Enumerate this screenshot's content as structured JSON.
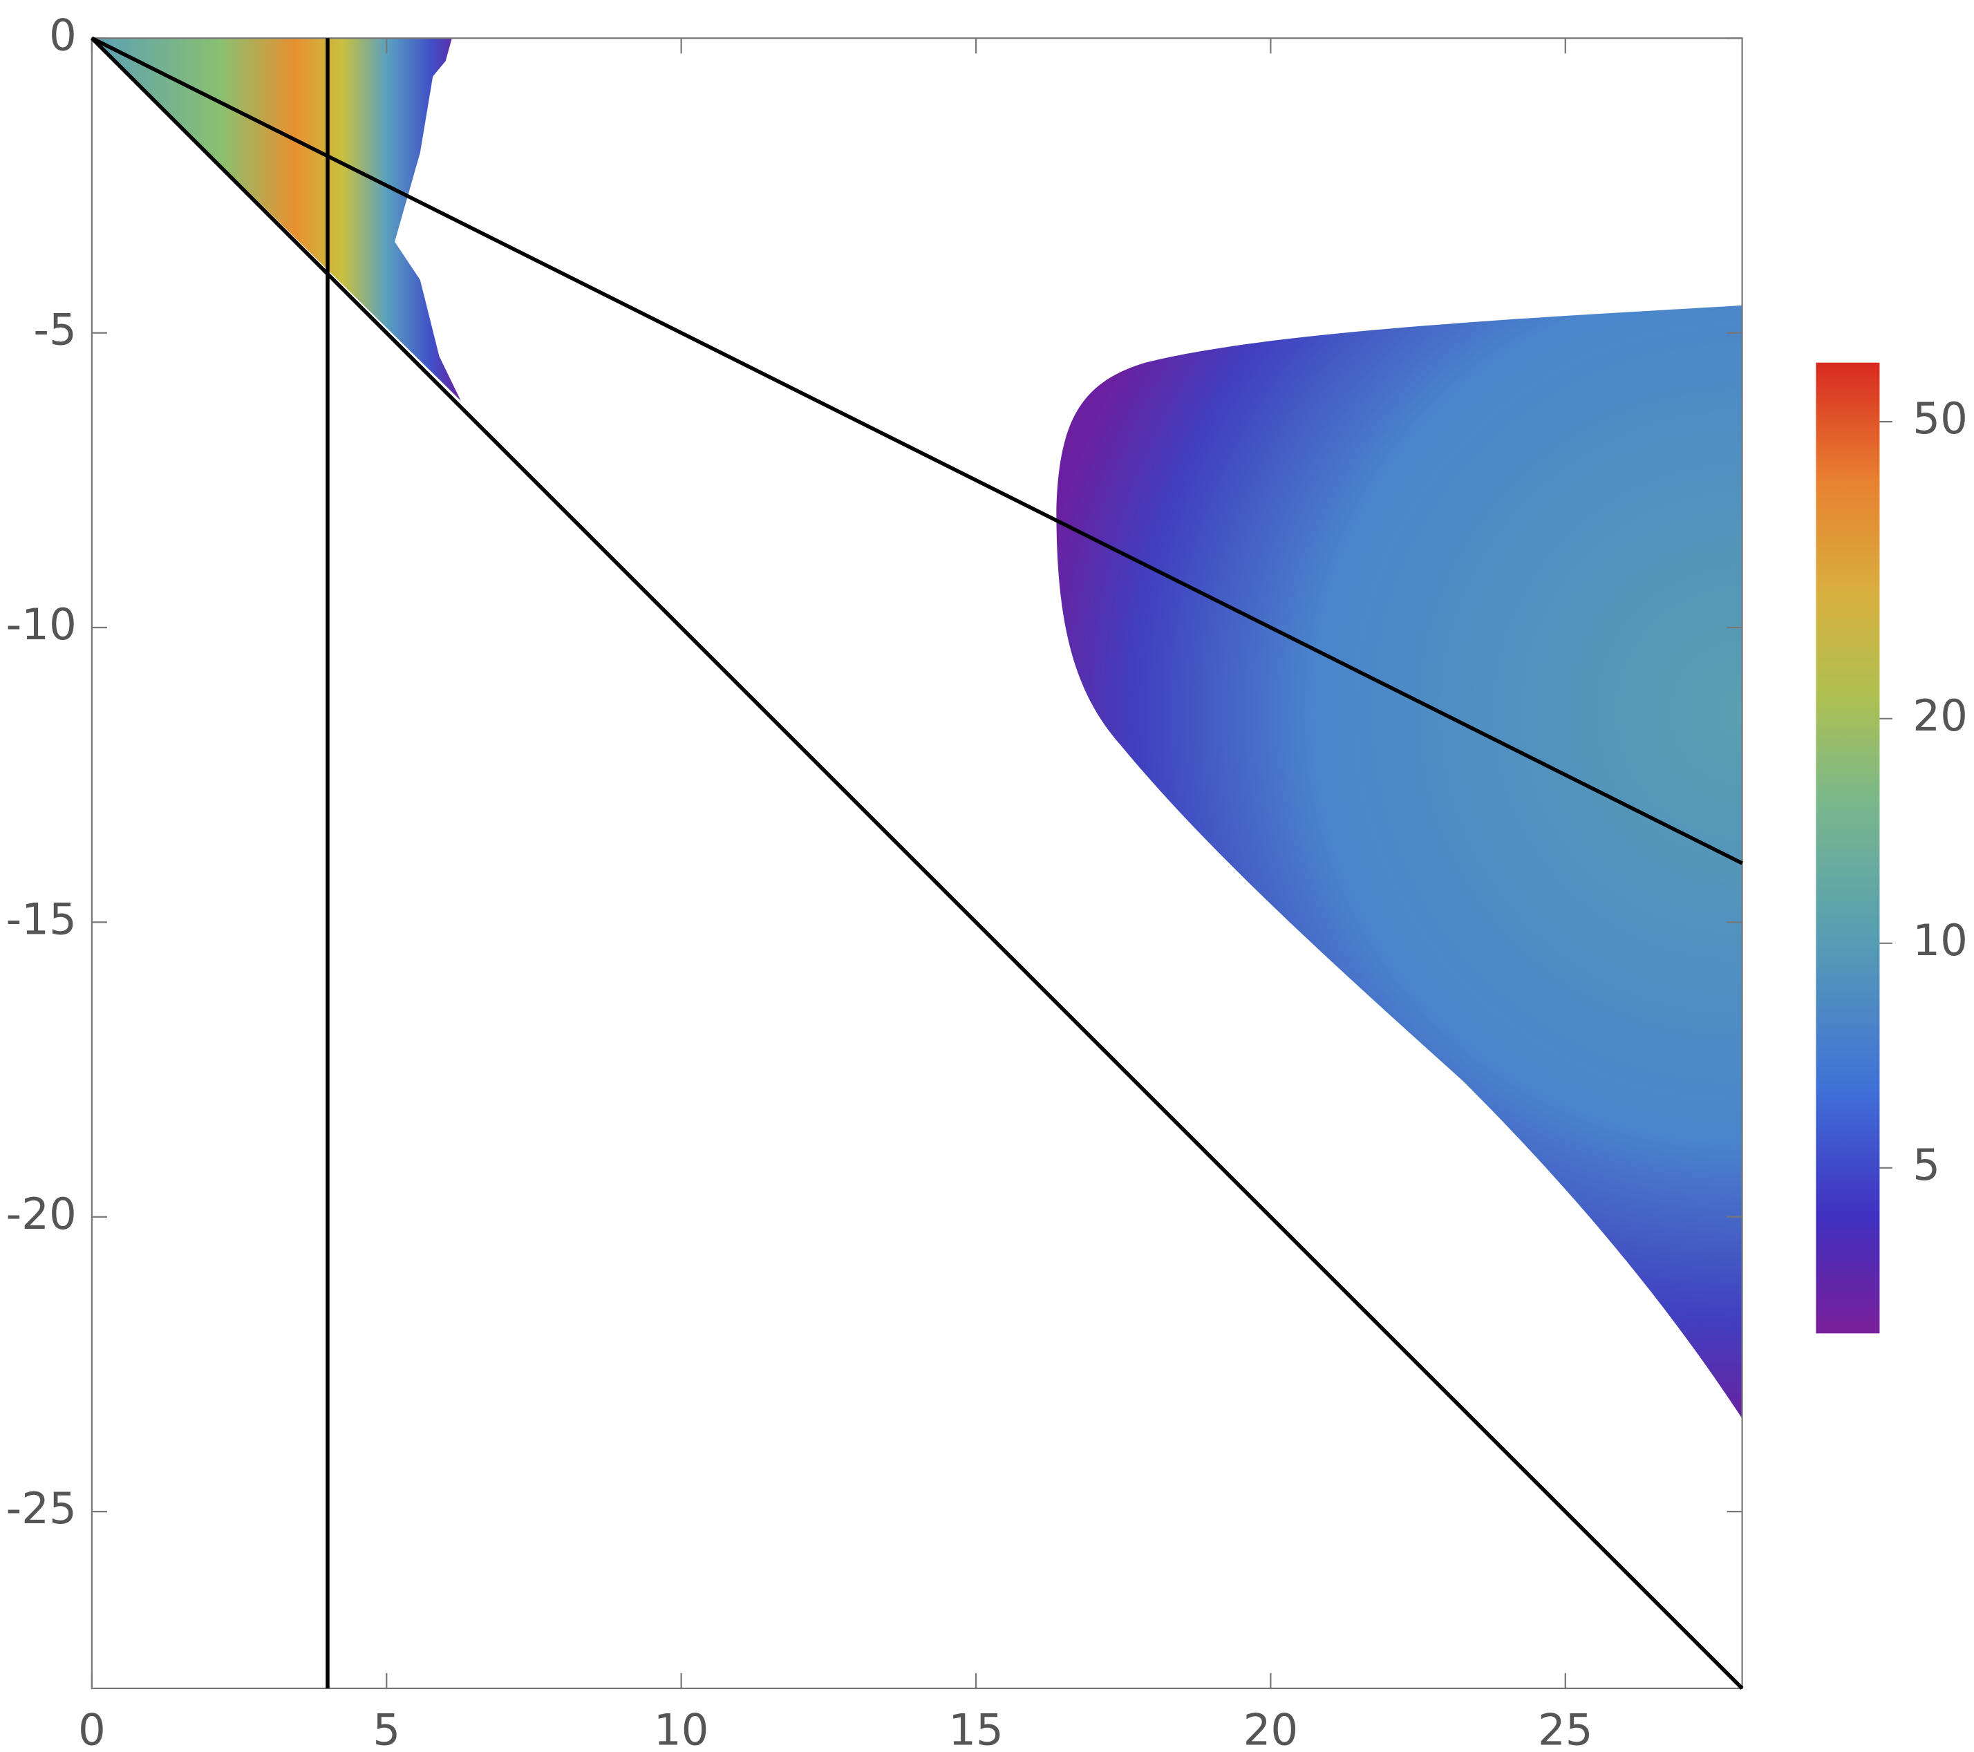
{
  "chart_data": {
    "type": "line",
    "xlim": [
      0,
      28
    ],
    "ylim": [
      -28,
      0
    ],
    "xticks": [
      0,
      5,
      10,
      15,
      20,
      25
    ],
    "yticks": [
      0,
      -5,
      -10,
      -15,
      -20,
      -25
    ],
    "series": [
      {
        "color": "#000000",
        "x": [
          4,
          4
        ],
        "values": [
          0,
          -28
        ]
      },
      {
        "color": "#000000",
        "x": [
          0,
          28
        ],
        "values": [
          0,
          -28
        ]
      },
      {
        "color": "#000000",
        "x": [
          0,
          28
        ],
        "values": [
          0,
          -14
        ]
      }
    ],
    "colorbar": {
      "lim": [
        3,
        60
      ],
      "ticks": [
        5,
        10,
        20,
        50
      ],
      "log": true
    }
  }
}
